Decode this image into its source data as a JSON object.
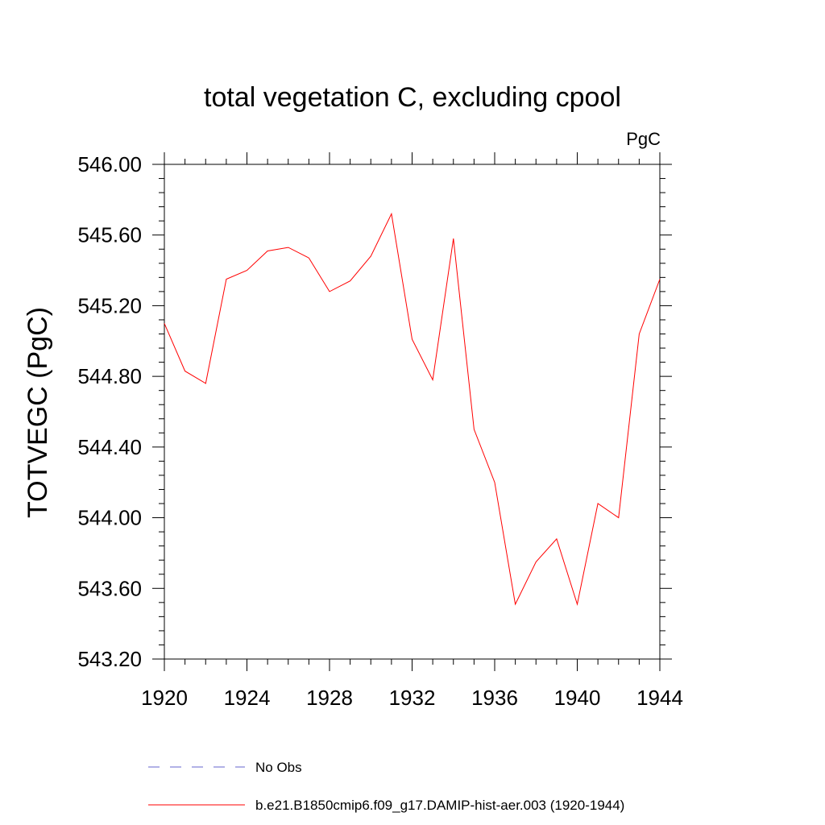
{
  "chart_data": {
    "type": "line",
    "title": "total vegetation C, excluding cpool",
    "units_label": "PgC",
    "ylabel": "TOTVEGC  (PgC)",
    "xlabel": "",
    "xlim": [
      1920,
      1944
    ],
    "ylim": [
      543.2,
      546.0
    ],
    "x_ticks": [
      1920,
      1924,
      1928,
      1932,
      1936,
      1940,
      1944
    ],
    "x_tick_labels": [
      "1920",
      "1924",
      "1928",
      "1932",
      "1936",
      "1940",
      "1944"
    ],
    "y_ticks": [
      543.2,
      543.6,
      544.0,
      544.4,
      544.8,
      545.2,
      545.6,
      546.0
    ],
    "y_tick_labels": [
      "543.20",
      "543.60",
      "544.00",
      "544.40",
      "544.80",
      "545.20",
      "545.60",
      "546.00"
    ],
    "grid": false,
    "legend_position": "bottom",
    "series": [
      {
        "name": "b.e21.B1850cmip6.f09_g17.DAMIP-hist-aer.003 (1920-1944)",
        "color": "#ff0000",
        "style": "solid",
        "x": [
          1920,
          1921,
          1922,
          1923,
          1924,
          1925,
          1926,
          1927,
          1928,
          1929,
          1930,
          1931,
          1932,
          1933,
          1934,
          1935,
          1936,
          1937,
          1938,
          1939,
          1940,
          1941,
          1942,
          1943,
          1944
        ],
        "y": [
          545.1,
          544.83,
          544.76,
          545.35,
          545.4,
          545.51,
          545.53,
          545.47,
          545.28,
          545.34,
          545.48,
          545.72,
          545.01,
          544.78,
          545.58,
          544.5,
          544.2,
          543.51,
          543.75,
          543.88,
          543.51,
          544.08,
          544.0,
          545.04,
          545.35
        ]
      }
    ],
    "legend": [
      {
        "label": "No Obs",
        "color": "#6666cc",
        "style": "dashed"
      },
      {
        "label": "b.e21.B1850cmip6.f09_g17.DAMIP-hist-aer.003 (1920-1944)",
        "color": "#ff0000",
        "style": "solid"
      }
    ]
  }
}
